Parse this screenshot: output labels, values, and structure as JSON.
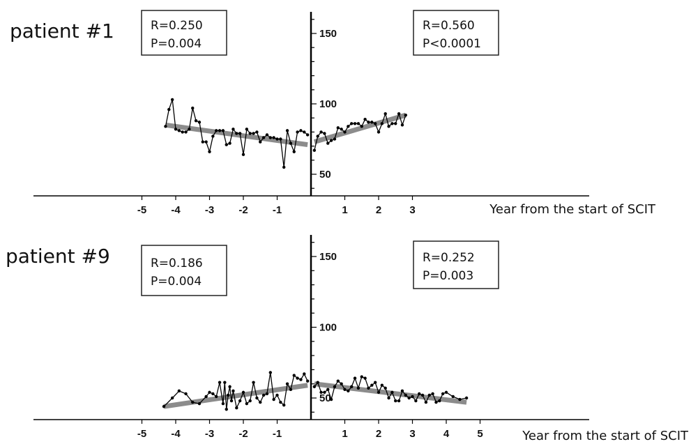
{
  "chart_data": [
    {
      "type": "line",
      "title": "patient #1",
      "xlabel": "Year from the start of SCIT",
      "ylabel": "",
      "xlim": [
        -5.4,
        7.8
      ],
      "ylim": [
        35,
        165
      ],
      "x_ticks": [
        -5,
        -4,
        -3,
        -2,
        -1,
        1,
        2,
        3
      ],
      "y_ticks": [
        50,
        100,
        150
      ],
      "grid": false,
      "stats": [
        {
          "side": "before",
          "R_label": "R=0.250",
          "P_label": "P=0.004"
        },
        {
          "side": "after",
          "R_label": "R=0.560",
          "P_label": "P<0.0001"
        }
      ],
      "series": [
        {
          "side": "before",
          "x": [
            -4.3,
            -4.2,
            -4.1,
            -4.0,
            -3.9,
            -3.8,
            -3.7,
            -3.6,
            -3.5,
            -3.4,
            -3.3,
            -3.2,
            -3.1,
            -3.0,
            -2.9,
            -2.8,
            -2.7,
            -2.6,
            -2.5,
            -2.4,
            -2.3,
            -2.2,
            -2.1,
            -2.0,
            -1.9,
            -1.8,
            -1.7,
            -1.6,
            -1.5,
            -1.4,
            -1.3,
            -1.2,
            -1.1,
            -1.0,
            -0.9,
            -0.8,
            -0.7,
            -0.6,
            -0.5,
            -0.4,
            -0.3,
            -0.2,
            -0.1
          ],
          "y": [
            84,
            96,
            103,
            82,
            81,
            80,
            80,
            82,
            97,
            88,
            87,
            73,
            73,
            66,
            77,
            81,
            81,
            81,
            71,
            72,
            82,
            79,
            79,
            64,
            82,
            79,
            79,
            80,
            73,
            76,
            78,
            76,
            76,
            75,
            75,
            55,
            81,
            72,
            66,
            80,
            81,
            80,
            78
          ]
        },
        {
          "side": "after",
          "x": [
            0.1,
            0.2,
            0.3,
            0.4,
            0.5,
            0.6,
            0.7,
            0.8,
            0.9,
            1.0,
            1.1,
            1.2,
            1.3,
            1.4,
            1.5,
            1.6,
            1.7,
            1.8,
            1.9,
            2.0,
            2.1,
            2.2,
            2.3,
            2.4,
            2.5,
            2.6,
            2.7,
            2.8
          ],
          "y": [
            67,
            77,
            80,
            79,
            72,
            74,
            75,
            83,
            82,
            80,
            84,
            86,
            86,
            86,
            84,
            89,
            87,
            87,
            86,
            80,
            86,
            93,
            84,
            86,
            86,
            93,
            85,
            92
          ]
        }
      ],
      "trend_lines": [
        {
          "side": "before",
          "x": [
            -4.3,
            -0.1
          ],
          "y": [
            85,
            71
          ]
        },
        {
          "side": "after",
          "x": [
            0.1,
            2.8
          ],
          "y": [
            73,
            92
          ]
        }
      ]
    },
    {
      "type": "line",
      "title": "patient #9",
      "xlabel": "Year from the start of SCIT",
      "ylabel": "",
      "xlim": [
        -5.4,
        7.8
      ],
      "ylim": [
        35,
        165
      ],
      "x_ticks": [
        -5,
        -4,
        -3,
        -2,
        -1,
        1,
        2,
        3,
        4,
        5
      ],
      "y_ticks": [
        50,
        100,
        150
      ],
      "grid": false,
      "stats": [
        {
          "side": "before",
          "R_label": "R=0.186",
          "P_label": "P=0.004"
        },
        {
          "side": "after",
          "R_label": "R=0.252",
          "P_label": "P=0.003"
        }
      ],
      "series": [
        {
          "side": "before",
          "x": [
            -4.35,
            -4.1,
            -3.9,
            -3.7,
            -3.5,
            -3.3,
            -3.1,
            -3.0,
            -2.9,
            -2.8,
            -2.7,
            -2.6,
            -2.55,
            -2.5,
            -2.45,
            -2.4,
            -2.35,
            -2.3,
            -2.2,
            -2.1,
            -2.0,
            -1.9,
            -1.8,
            -1.7,
            -1.6,
            -1.5,
            -1.4,
            -1.3,
            -1.2,
            -1.1,
            -1.0,
            -0.9,
            -0.8,
            -0.7,
            -0.6,
            -0.5,
            -0.4,
            -0.3,
            -0.2,
            -0.1
          ],
          "y": [
            44,
            50,
            55,
            53,
            47,
            46,
            51,
            54,
            53,
            51,
            61,
            46,
            61,
            42,
            52,
            58,
            48,
            55,
            43,
            48,
            54,
            46,
            48,
            61,
            50,
            47,
            52,
            53,
            68,
            49,
            52,
            47,
            45,
            60,
            56,
            66,
            64,
            63,
            67,
            62
          ]
        },
        {
          "side": "after",
          "x": [
            0.1,
            0.2,
            0.3,
            0.4,
            0.5,
            0.6,
            0.7,
            0.8,
            0.9,
            1.0,
            1.1,
            1.2,
            1.3,
            1.4,
            1.5,
            1.6,
            1.7,
            1.8,
            1.9,
            2.0,
            2.1,
            2.2,
            2.3,
            2.4,
            2.5,
            2.6,
            2.7,
            2.8,
            2.9,
            3.0,
            3.1,
            3.2,
            3.3,
            3.4,
            3.5,
            3.6,
            3.7,
            3.8,
            3.9,
            4.0,
            4.2,
            4.4,
            4.6
          ],
          "y": [
            58,
            61,
            54,
            54,
            56,
            49,
            58,
            62,
            60,
            56,
            55,
            58,
            64,
            57,
            65,
            64,
            57,
            59,
            61,
            54,
            59,
            57,
            50,
            54,
            48,
            48,
            55,
            52,
            50,
            51,
            48,
            53,
            52,
            47,
            52,
            53,
            47,
            48,
            53,
            54,
            51,
            49,
            50
          ]
        }
      ],
      "trend_lines": [
        {
          "side": "before",
          "x": [
            -4.35,
            -0.1
          ],
          "y": [
            44,
            59
          ]
        },
        {
          "side": "after",
          "x": [
            0.1,
            4.6
          ],
          "y": [
            60,
            47
          ]
        }
      ]
    }
  ]
}
